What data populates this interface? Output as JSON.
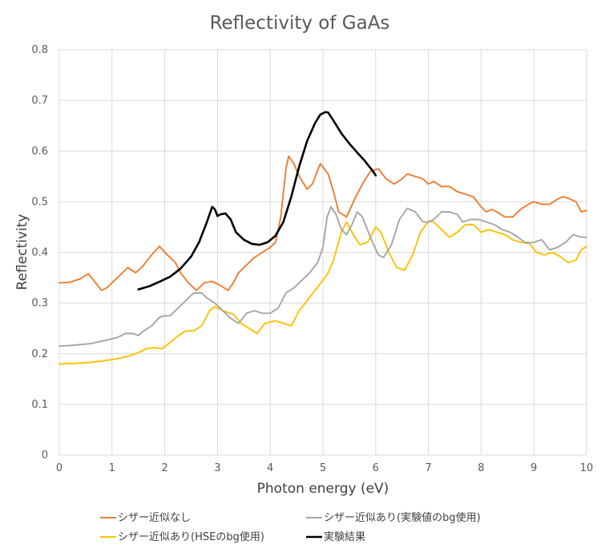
{
  "chart_data": {
    "type": "line",
    "title": "Reflectivity of GaAs",
    "xlabel": "Photon energy (eV)",
    "ylabel": "Reflectivity",
    "xlim": [
      0,
      10
    ],
    "ylim": [
      0,
      0.8
    ],
    "x_ticks": [
      "0",
      "1",
      "2",
      "3",
      "4",
      "5",
      "6",
      "7",
      "8",
      "9",
      "10"
    ],
    "y_ticks": [
      "0",
      "0.1",
      "0.2",
      "0.3",
      "0.4",
      "0.5",
      "0.6",
      "0.7",
      "0.8"
    ],
    "grid": "vertical and horizontal",
    "legend_position": "bottom",
    "series": [
      {
        "name": "シザー近似なし",
        "color": "#ED7D31",
        "x": [
          0,
          0.2,
          0.4,
          0.55,
          0.65,
          0.8,
          0.9,
          1.0,
          1.15,
          1.3,
          1.45,
          1.6,
          1.75,
          1.9,
          2.05,
          2.2,
          2.3,
          2.45,
          2.6,
          2.75,
          2.9,
          3.05,
          3.2,
          3.3,
          3.4,
          3.55,
          3.7,
          3.85,
          4.0,
          4.1,
          4.2,
          4.3,
          4.35,
          4.45,
          4.55,
          4.7,
          4.8,
          4.95,
          5.1,
          5.2,
          5.3,
          5.45,
          5.6,
          5.75,
          5.9,
          6.05,
          6.2,
          6.35,
          6.5,
          6.6,
          6.75,
          6.9,
          7.0,
          7.1,
          7.25,
          7.4,
          7.55,
          7.7,
          7.85,
          8.0,
          8.1,
          8.2,
          8.3,
          8.45,
          8.6,
          8.75,
          8.9,
          9.0,
          9.15,
          9.3,
          9.45,
          9.55,
          9.65,
          9.8,
          9.9,
          10.0
        ],
        "y": [
          0.34,
          0.341,
          0.348,
          0.358,
          0.345,
          0.325,
          0.33,
          0.34,
          0.355,
          0.37,
          0.36,
          0.375,
          0.395,
          0.412,
          0.395,
          0.38,
          0.36,
          0.34,
          0.325,
          0.34,
          0.343,
          0.335,
          0.325,
          0.34,
          0.36,
          0.375,
          0.39,
          0.4,
          0.41,
          0.42,
          0.47,
          0.565,
          0.59,
          0.575,
          0.55,
          0.525,
          0.535,
          0.575,
          0.555,
          0.52,
          0.48,
          0.47,
          0.505,
          0.535,
          0.56,
          0.565,
          0.545,
          0.535,
          0.545,
          0.555,
          0.55,
          0.545,
          0.535,
          0.54,
          0.53,
          0.53,
          0.52,
          0.515,
          0.51,
          0.49,
          0.48,
          0.485,
          0.48,
          0.47,
          0.47,
          0.485,
          0.495,
          0.5,
          0.495,
          0.495,
          0.505,
          0.51,
          0.507,
          0.5,
          0.48,
          0.483
        ]
      },
      {
        "name": "シザー近似あり(実験値のbg使用)",
        "color": "#A5A5A5",
        "x": [
          0,
          0.3,
          0.6,
          0.9,
          1.1,
          1.25,
          1.4,
          1.5,
          1.6,
          1.75,
          1.9,
          2.0,
          2.1,
          2.25,
          2.4,
          2.55,
          2.7,
          2.8,
          2.95,
          3.1,
          3.25,
          3.4,
          3.55,
          3.7,
          3.85,
          4.0,
          4.15,
          4.3,
          4.45,
          4.6,
          4.75,
          4.9,
          5.0,
          5.08,
          5.15,
          5.25,
          5.35,
          5.45,
          5.55,
          5.65,
          5.75,
          5.9,
          6.05,
          6.15,
          6.3,
          6.45,
          6.6,
          6.75,
          6.9,
          7.0,
          7.1,
          7.25,
          7.4,
          7.55,
          7.65,
          7.8,
          7.95,
          8.1,
          8.25,
          8.4,
          8.55,
          8.7,
          8.85,
          9.0,
          9.15,
          9.3,
          9.45,
          9.6,
          9.75,
          9.9,
          10.0
        ],
        "y": [
          0.215,
          0.217,
          0.22,
          0.227,
          0.232,
          0.24,
          0.24,
          0.236,
          0.245,
          0.255,
          0.272,
          0.275,
          0.275,
          0.29,
          0.305,
          0.32,
          0.32,
          0.31,
          0.3,
          0.285,
          0.27,
          0.26,
          0.28,
          0.285,
          0.28,
          0.28,
          0.29,
          0.32,
          0.33,
          0.345,
          0.36,
          0.38,
          0.41,
          0.47,
          0.49,
          0.475,
          0.445,
          0.435,
          0.455,
          0.48,
          0.47,
          0.43,
          0.395,
          0.39,
          0.415,
          0.465,
          0.487,
          0.48,
          0.46,
          0.46,
          0.465,
          0.48,
          0.48,
          0.475,
          0.46,
          0.465,
          0.465,
          0.46,
          0.455,
          0.445,
          0.44,
          0.43,
          0.418,
          0.42,
          0.425,
          0.405,
          0.41,
          0.42,
          0.435,
          0.43,
          0.43
        ]
      },
      {
        "name": "シザー近似あり(HSEのbg使用)",
        "color": "#FFC000",
        "x": [
          0,
          0.3,
          0.6,
          0.9,
          1.1,
          1.3,
          1.5,
          1.65,
          1.8,
          1.95,
          2.1,
          2.25,
          2.4,
          2.55,
          2.7,
          2.85,
          2.95,
          3.1,
          3.3,
          3.45,
          3.6,
          3.75,
          3.9,
          4.1,
          4.25,
          4.4,
          4.55,
          4.7,
          4.85,
          5.0,
          5.1,
          5.2,
          5.35,
          5.45,
          5.55,
          5.7,
          5.85,
          6.0,
          6.1,
          6.25,
          6.4,
          6.55,
          6.7,
          6.85,
          7.0,
          7.1,
          7.25,
          7.4,
          7.55,
          7.7,
          7.85,
          8.0,
          8.15,
          8.3,
          8.45,
          8.6,
          8.75,
          8.9,
          9.05,
          9.2,
          9.35,
          9.5,
          9.65,
          9.8,
          9.9,
          10.0
        ],
        "y": [
          0.18,
          0.181,
          0.183,
          0.187,
          0.19,
          0.195,
          0.202,
          0.21,
          0.212,
          0.21,
          0.222,
          0.235,
          0.245,
          0.245,
          0.255,
          0.285,
          0.293,
          0.285,
          0.278,
          0.26,
          0.25,
          0.24,
          0.26,
          0.265,
          0.26,
          0.255,
          0.285,
          0.305,
          0.325,
          0.345,
          0.36,
          0.385,
          0.44,
          0.46,
          0.44,
          0.415,
          0.42,
          0.45,
          0.44,
          0.4,
          0.37,
          0.365,
          0.395,
          0.44,
          0.462,
          0.46,
          0.445,
          0.43,
          0.44,
          0.455,
          0.455,
          0.44,
          0.445,
          0.44,
          0.435,
          0.425,
          0.42,
          0.42,
          0.4,
          0.395,
          0.4,
          0.392,
          0.38,
          0.385,
          0.405,
          0.412
        ]
      },
      {
        "name": "実験結果",
        "color": "#000000",
        "x": [
          1.5,
          1.7,
          1.9,
          2.1,
          2.3,
          2.5,
          2.65,
          2.8,
          2.9,
          2.95,
          3.0,
          3.05,
          3.15,
          3.25,
          3.35,
          3.5,
          3.65,
          3.8,
          3.95,
          4.1,
          4.25,
          4.4,
          4.55,
          4.7,
          4.85,
          4.95,
          5.05,
          5.1,
          5.15,
          5.25,
          5.35,
          5.5,
          5.65,
          5.8,
          5.95,
          6.0
        ],
        "y": [
          0.327,
          0.333,
          0.342,
          0.352,
          0.368,
          0.392,
          0.42,
          0.46,
          0.49,
          0.485,
          0.472,
          0.475,
          0.477,
          0.465,
          0.44,
          0.425,
          0.417,
          0.415,
          0.42,
          0.433,
          0.46,
          0.51,
          0.57,
          0.62,
          0.655,
          0.672,
          0.677,
          0.676,
          0.668,
          0.652,
          0.635,
          0.615,
          0.597,
          0.58,
          0.56,
          0.552
        ]
      }
    ]
  }
}
